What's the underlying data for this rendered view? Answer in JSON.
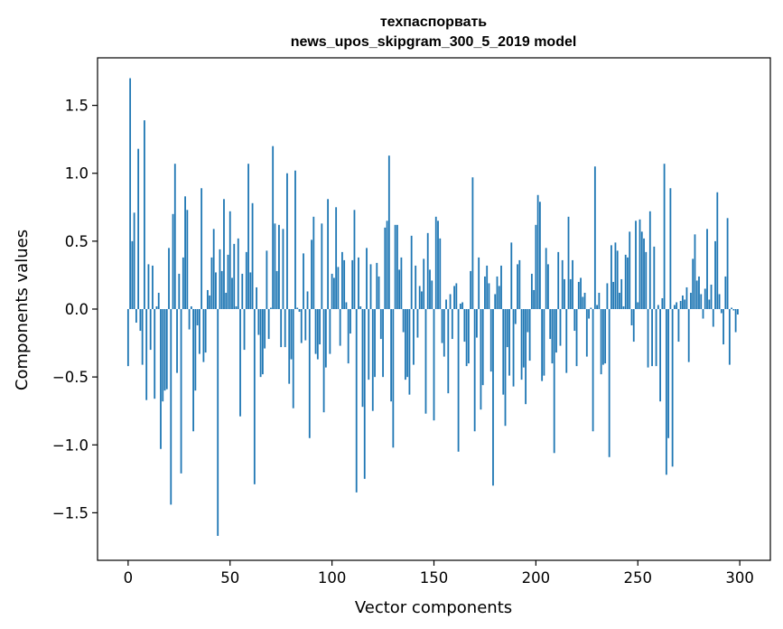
{
  "chart_data": {
    "type": "bar",
    "title_line1": "техпаспорвать",
    "title_line2": "news_upos_skipgram_300_5_2019 model",
    "xlabel": "Vector components",
    "ylabel": "Components values",
    "xlim": [
      -15,
      315
    ],
    "ylim": [
      -1.85,
      1.85
    ],
    "xticks": [
      0,
      50,
      100,
      150,
      200,
      250,
      300
    ],
    "xtick_labels": [
      "0",
      "50",
      "100",
      "150",
      "200",
      "250",
      "300"
    ],
    "yticks": [
      -1.5,
      -1.0,
      -0.5,
      0.0,
      0.5,
      1.0,
      1.5
    ],
    "ytick_labels": [
      "−1.5",
      "−1.0",
      "−0.5",
      "0.0",
      "0.5",
      "1.0",
      "1.5"
    ],
    "grid": false,
    "bar_color": "#1f77b4",
    "series": [
      {
        "values": [
          -0.42,
          1.7,
          0.5,
          0.71,
          -0.1,
          1.18,
          -0.16,
          -0.41,
          1.39,
          -0.67,
          0.33,
          -0.3,
          0.32,
          -0.66,
          0.02,
          0.12,
          -1.03,
          -0.68,
          -0.6,
          -0.59,
          0.45,
          -1.44,
          0.7,
          1.07,
          -0.47,
          0.26,
          -1.21,
          0.38,
          0.83,
          0.73,
          -0.15,
          0.02,
          -0.9,
          -0.6,
          -0.12,
          -0.33,
          0.89,
          -0.39,
          -0.32,
          0.14,
          0.1,
          0.38,
          0.59,
          0.27,
          -1.67,
          0.44,
          0.28,
          0.81,
          0.12,
          0.4,
          0.72,
          0.23,
          0.48,
          0.02,
          0.52,
          -0.79,
          0.26,
          -0.3,
          0.42,
          1.07,
          0.27,
          0.78,
          -1.29,
          0.16,
          -0.19,
          -0.5,
          -0.48,
          -0.29,
          0.43,
          -0.22,
          0.01,
          1.2,
          0.63,
          0.28,
          0.62,
          -0.28,
          0.59,
          -0.28,
          1.0,
          -0.55,
          -0.37,
          -0.73,
          1.02,
          0.01,
          -0.02,
          -0.25,
          0.41,
          -0.23,
          0.13,
          -0.95,
          0.51,
          0.68,
          -0.33,
          -0.37,
          -0.26,
          0.63,
          -0.76,
          -0.43,
          0.81,
          -0.33,
          0.26,
          0.23,
          0.75,
          0.31,
          -0.27,
          0.42,
          0.36,
          0.05,
          -0.4,
          -0.18,
          0.36,
          0.73,
          -1.35,
          0.38,
          0.02,
          -0.72,
          -1.25,
          0.45,
          -0.52,
          0.33,
          -0.75,
          -0.5,
          0.34,
          0.24,
          -0.22,
          -0.5,
          0.6,
          0.65,
          1.13,
          -0.68,
          -1.02,
          0.62,
          0.62,
          0.29,
          0.38,
          -0.17,
          -0.52,
          -0.5,
          -0.63,
          0.54,
          -0.41,
          0.32,
          -0.21,
          0.17,
          0.13,
          0.37,
          -0.77,
          0.56,
          0.29,
          0.21,
          -0.82,
          0.68,
          0.65,
          0.52,
          -0.25,
          -0.35,
          0.07,
          -0.62,
          0.11,
          -0.22,
          0.17,
          0.19,
          -1.05,
          0.04,
          0.05,
          -0.24,
          -0.42,
          -0.4,
          0.28,
          0.97,
          -0.9,
          -0.21,
          0.38,
          -0.74,
          -0.56,
          0.24,
          0.32,
          0.19,
          -0.46,
          -1.3,
          0.11,
          0.24,
          0.17,
          0.32,
          -0.63,
          -0.86,
          -0.28,
          -0.49,
          0.49,
          -0.57,
          -0.11,
          0.33,
          0.36,
          -0.52,
          -0.43,
          -0.7,
          -0.17,
          -0.38,
          0.26,
          0.14,
          0.62,
          0.84,
          0.79,
          -0.53,
          -0.49,
          0.45,
          0.33,
          -0.22,
          -0.4,
          -1.06,
          -0.32,
          0.42,
          -0.27,
          0.36,
          0.22,
          -0.47,
          0.68,
          0.22,
          0.36,
          -0.16,
          -0.42,
          0.2,
          0.23,
          0.09,
          0.12,
          -0.35,
          -0.07,
          0.01,
          -0.9,
          1.05,
          0.03,
          0.12,
          -0.48,
          -0.41,
          -0.4,
          0.19,
          -1.09,
          0.47,
          0.2,
          0.49,
          0.43,
          0.12,
          0.22,
          0.02,
          0.4,
          0.38,
          0.57,
          -0.12,
          -0.24,
          0.65,
          0.05,
          0.66,
          0.57,
          0.52,
          0.42,
          -0.43,
          0.72,
          -0.42,
          0.46,
          -0.42,
          0.03,
          -0.68,
          0.08,
          1.07,
          -1.22,
          -0.95,
          0.89,
          -1.16,
          0.03,
          0.05,
          -0.24,
          0.06,
          0.1,
          0.07,
          0.16,
          -0.39,
          0.12,
          0.37,
          0.55,
          0.21,
          0.24,
          0.11,
          -0.07,
          0.15,
          0.59,
          0.07,
          0.18,
          -0.13,
          0.5,
          0.86,
          0.11,
          -0.03,
          -0.26,
          0.24,
          0.67,
          -0.41,
          0.01,
          -0.01,
          -0.17,
          -0.04
        ]
      }
    ]
  }
}
